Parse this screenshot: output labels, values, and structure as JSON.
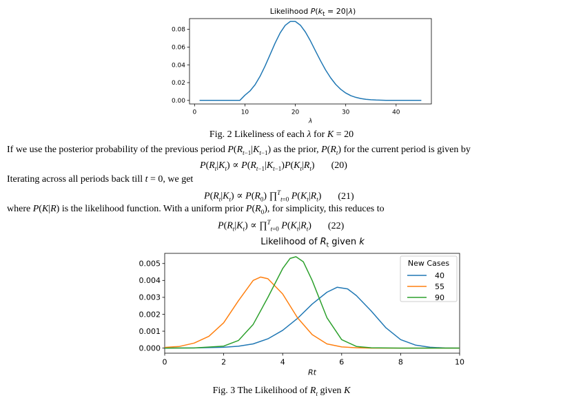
{
  "figure2": {
    "title": "Likelihood P(kt = 20|λ)",
    "caption": "Fig. 2 Likeliness of each λ for K = 20",
    "chart_data": {
      "type": "line",
      "xlabel": "λ",
      "ylabel": "",
      "xlim": [
        -1,
        47
      ],
      "ylim": [
        -0.004,
        0.092
      ],
      "x_ticks": [
        0,
        10,
        20,
        30,
        40
      ],
      "y_ticks": [
        0.0,
        0.02,
        0.04,
        0.06,
        0.08
      ],
      "y_tick_labels": [
        "0.00",
        "0.02",
        "0.04",
        "0.06",
        "0.08"
      ],
      "grid": false,
      "series": [
        {
          "color": "#1f77b4",
          "x": [
            1,
            3,
            5,
            7,
            9,
            10,
            11,
            12,
            13,
            14,
            15,
            16,
            17,
            18,
            19,
            20,
            21,
            22,
            23,
            24,
            25,
            26,
            27,
            28,
            29,
            30,
            31,
            32,
            33,
            34,
            35,
            36,
            38,
            40,
            42,
            45
          ],
          "y": [
            0.0,
            0.0,
            0.0,
            0.0,
            0.0,
            0.0058,
            0.0106,
            0.0176,
            0.0271,
            0.0387,
            0.0516,
            0.0646,
            0.076,
            0.0844,
            0.0888,
            0.0888,
            0.0846,
            0.0769,
            0.0669,
            0.0557,
            0.0446,
            0.0343,
            0.0254,
            0.0181,
            0.0125,
            0.0083,
            0.0054,
            0.0034,
            0.0021,
            0.0012,
            0.0007,
            0.0004,
            0.0001,
            0.0,
            0.0,
            0.0
          ]
        }
      ]
    }
  },
  "text": {
    "para1": "If we use the posterior probability of the previous period P(Rt−1|Kt−1) as the prior, P(Rt) for the current period is given by",
    "eq20_num": "(20)",
    "para2": "Iterating across all periods back till t = 0, we get",
    "eq21_num": "(21)",
    "para3": "where P(K|R) is the likelihood function. With a uniform prior P(R0), for simplicity, this reduces to",
    "eq22_num": "(22)"
  },
  "figure3": {
    "title": "Likelihood of Rt given k",
    "caption": "Fig. 3 The Likelihood of Rt given K",
    "chart_data": {
      "type": "line",
      "xlabel": "Rt",
      "ylabel": "",
      "xlim": [
        0,
        10
      ],
      "ylim": [
        -0.0003,
        0.0056
      ],
      "x_ticks": [
        0,
        2,
        4,
        6,
        8,
        10
      ],
      "y_ticks": [
        0.0,
        0.001,
        0.002,
        0.003,
        0.004,
        0.005
      ],
      "y_tick_labels": [
        "0.000",
        "0.001",
        "0.002",
        "0.003",
        "0.004",
        "0.005"
      ],
      "grid": false,
      "legend": {
        "title": "New Cases",
        "placement": "top-right"
      },
      "series": [
        {
          "name": "40",
          "color": "#1f77b4",
          "x": [
            0,
            1,
            2,
            2.5,
            3,
            3.5,
            4,
            4.5,
            5,
            5.5,
            5.85,
            6.2,
            6.5,
            7,
            7.5,
            8,
            8.5,
            9,
            9.5,
            10
          ],
          "y": [
            0,
            1e-05,
            5e-05,
            0.00011,
            0.00025,
            0.00055,
            0.00105,
            0.00175,
            0.0026,
            0.0033,
            0.0036,
            0.0035,
            0.0031,
            0.0022,
            0.0012,
            0.0005,
            0.00018,
            5e-05,
            1e-05,
            0
          ]
        },
        {
          "name": "55",
          "color": "#ff7f0e",
          "x": [
            0,
            0.5,
            1,
            1.5,
            2,
            2.5,
            3,
            3.25,
            3.5,
            4,
            4.5,
            5,
            5.5,
            6,
            6.5,
            7,
            8,
            10
          ],
          "y": [
            4e-05,
            0.0001,
            0.0003,
            0.0007,
            0.0015,
            0.0028,
            0.004,
            0.0042,
            0.0041,
            0.0032,
            0.0018,
            0.0008,
            0.00025,
            7e-05,
            2e-05,
            0,
            0,
            0
          ]
        },
        {
          "name": "90",
          "color": "#2ca02c",
          "x": [
            0,
            1,
            2,
            2.5,
            3,
            3.5,
            4,
            4.25,
            4.45,
            4.7,
            5,
            5.5,
            6,
            6.5,
            7,
            8,
            10
          ],
          "y": [
            0,
            1e-05,
            0.00012,
            0.00045,
            0.0014,
            0.003,
            0.0047,
            0.0053,
            0.0054,
            0.0051,
            0.004,
            0.0018,
            0.0005,
            0.0001,
            2e-05,
            0,
            0
          ]
        }
      ]
    }
  }
}
